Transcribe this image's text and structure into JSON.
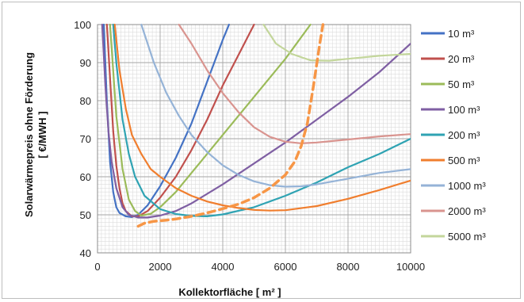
{
  "chart_data": {
    "type": "line",
    "xlabel": "Kollektorfläche [ m² ]",
    "ylabel_line1": "Solarwärmepreis ohne Förderung",
    "ylabel_line2": "[ €/MWH ]",
    "xlim": [
      0,
      10000
    ],
    "ylim": [
      40,
      100
    ],
    "xticks": [
      0,
      2000,
      4000,
      6000,
      8000,
      10000
    ],
    "yticks": [
      40,
      50,
      60,
      70,
      80,
      90,
      100
    ],
    "xtick_labels": [
      "0",
      "2000",
      "4000",
      "6000",
      "8000",
      "10000"
    ],
    "ytick_labels": [
      "40",
      "50",
      "60",
      "70",
      "80",
      "90",
      "100"
    ],
    "grid": true,
    "legend_position": "right",
    "series": [
      {
        "name": "10 m³",
        "color": "#4472C4",
        "dashed": false,
        "points": [
          [
            200,
            100
          ],
          [
            300,
            80
          ],
          [
            400,
            64
          ],
          [
            500,
            56
          ],
          [
            600,
            52
          ],
          [
            700,
            50.5
          ],
          [
            900,
            49.6
          ],
          [
            1100,
            49.4
          ],
          [
            1300,
            50
          ],
          [
            1600,
            52.5
          ],
          [
            2000,
            57.5
          ],
          [
            2500,
            65
          ],
          [
            3000,
            74
          ],
          [
            3500,
            85
          ],
          [
            4000,
            96
          ],
          [
            4200,
            100
          ]
        ]
      },
      {
        "name": "20 m³",
        "color": "#C0504D",
        "dashed": false,
        "points": [
          [
            300,
            100
          ],
          [
            400,
            86
          ],
          [
            500,
            72
          ],
          [
            600,
            63
          ],
          [
            700,
            57
          ],
          [
            800,
            53
          ],
          [
            900,
            51
          ],
          [
            1100,
            49.6
          ],
          [
            1300,
            49.6
          ],
          [
            1600,
            51
          ],
          [
            2000,
            54.5
          ],
          [
            2500,
            60
          ],
          [
            3000,
            67
          ],
          [
            3500,
            75
          ],
          [
            4000,
            84
          ],
          [
            4500,
            92
          ],
          [
            5000,
            100
          ]
        ]
      },
      {
        "name": "50 m³",
        "color": "#9BBB59",
        "dashed": false,
        "points": [
          [
            400,
            100
          ],
          [
            600,
            76
          ],
          [
            800,
            62
          ],
          [
            1000,
            54
          ],
          [
            1200,
            51
          ],
          [
            1400,
            49.8
          ],
          [
            1700,
            50.3
          ],
          [
            2000,
            52
          ],
          [
            2500,
            56
          ],
          [
            3000,
            61
          ],
          [
            3500,
            66
          ],
          [
            4000,
            71
          ],
          [
            5000,
            81
          ],
          [
            6000,
            91
          ],
          [
            6800,
            100
          ]
        ]
      },
      {
        "name": "100 m³",
        "color": "#7F5FA3",
        "dashed": false,
        "points": [
          [
            150,
            100
          ],
          [
            250,
            84
          ],
          [
            350,
            72
          ],
          [
            450,
            64
          ],
          [
            600,
            57
          ],
          [
            800,
            52
          ],
          [
            1000,
            50
          ],
          [
            1300,
            49.3
          ],
          [
            1600,
            49.3
          ],
          [
            2000,
            49.8
          ],
          [
            2500,
            51
          ],
          [
            3000,
            53
          ],
          [
            4000,
            58
          ],
          [
            5000,
            63.5
          ],
          [
            6000,
            69
          ],
          [
            7000,
            75
          ],
          [
            8000,
            81
          ],
          [
            9000,
            87.5
          ],
          [
            10000,
            95
          ]
        ]
      },
      {
        "name": "200 m³",
        "color": "#2FA3B3",
        "dashed": false,
        "points": [
          [
            500,
            100
          ],
          [
            600,
            90
          ],
          [
            800,
            75
          ],
          [
            1000,
            66
          ],
          [
            1200,
            60
          ],
          [
            1500,
            55
          ],
          [
            2000,
            51.5
          ],
          [
            2500,
            50.2
          ],
          [
            3000,
            49.7
          ],
          [
            3500,
            49.6
          ],
          [
            4000,
            50.1
          ],
          [
            5000,
            52
          ],
          [
            6000,
            55
          ],
          [
            7000,
            58.5
          ],
          [
            8000,
            62.5
          ],
          [
            9000,
            66
          ],
          [
            10000,
            70
          ]
        ]
      },
      {
        "name": "500 m³",
        "color": "#F07E2E",
        "dashed": false,
        "points": [
          [
            550,
            100
          ],
          [
            700,
            88
          ],
          [
            900,
            78
          ],
          [
            1100,
            71
          ],
          [
            1400,
            66
          ],
          [
            1700,
            62
          ],
          [
            2000,
            60
          ],
          [
            2500,
            57
          ],
          [
            3000,
            55
          ],
          [
            3500,
            53.5
          ],
          [
            4000,
            52.5
          ],
          [
            4500,
            51.8
          ],
          [
            5000,
            51.3
          ],
          [
            5500,
            51.1
          ],
          [
            6000,
            51.2
          ],
          [
            7000,
            52.3
          ],
          [
            8000,
            54.2
          ],
          [
            9000,
            56.5
          ],
          [
            10000,
            59
          ]
        ]
      },
      {
        "name": "1000 m³",
        "color": "#95B3D7",
        "dashed": false,
        "points": [
          [
            1400,
            100
          ],
          [
            1800,
            90
          ],
          [
            2200,
            82
          ],
          [
            2600,
            76
          ],
          [
            3000,
            71
          ],
          [
            3500,
            66.5
          ],
          [
            4000,
            63
          ],
          [
            4500,
            60.5
          ],
          [
            5000,
            58.8
          ],
          [
            5500,
            57.8
          ],
          [
            6000,
            57.4
          ],
          [
            6500,
            57.5
          ],
          [
            7000,
            58
          ],
          [
            8000,
            59.5
          ],
          [
            9000,
            61
          ],
          [
            10000,
            62
          ]
        ]
      },
      {
        "name": "2000 m³",
        "color": "#D9948F",
        "dashed": false,
        "points": [
          [
            2600,
            100
          ],
          [
            3000,
            95
          ],
          [
            3500,
            88
          ],
          [
            4000,
            82
          ],
          [
            4500,
            77
          ],
          [
            5000,
            73
          ],
          [
            5500,
            70.5
          ],
          [
            6000,
            69.2
          ],
          [
            6500,
            68.8
          ],
          [
            7000,
            69
          ],
          [
            7500,
            69.4
          ],
          [
            8000,
            69.8
          ],
          [
            9000,
            70.6
          ],
          [
            10000,
            71.2
          ]
        ]
      },
      {
        "name": "5000 m³",
        "color": "#C3D69B",
        "dashed": false,
        "points": [
          [
            5300,
            100
          ],
          [
            5700,
            95
          ],
          [
            6200,
            92.3
          ],
          [
            6800,
            90.6
          ],
          [
            7400,
            90.5
          ],
          [
            8000,
            91
          ],
          [
            9000,
            91.8
          ],
          [
            10000,
            92.3
          ]
        ]
      },
      {
        "name": "",
        "color": "#F79646",
        "dashed": true,
        "points": [
          [
            1300,
            47
          ],
          [
            1500,
            47.8
          ],
          [
            1800,
            48.3
          ],
          [
            2200,
            48.6
          ],
          [
            2500,
            48.9
          ],
          [
            3000,
            49.6
          ],
          [
            3500,
            50.5
          ],
          [
            4000,
            51.6
          ],
          [
            4500,
            52.8
          ],
          [
            5000,
            54.5
          ],
          [
            5500,
            57
          ],
          [
            6000,
            60.5
          ],
          [
            6300,
            64
          ],
          [
            6500,
            68
          ],
          [
            6700,
            74
          ],
          [
            6900,
            84
          ],
          [
            7100,
            95
          ],
          [
            7200,
            100
          ]
        ]
      }
    ]
  }
}
